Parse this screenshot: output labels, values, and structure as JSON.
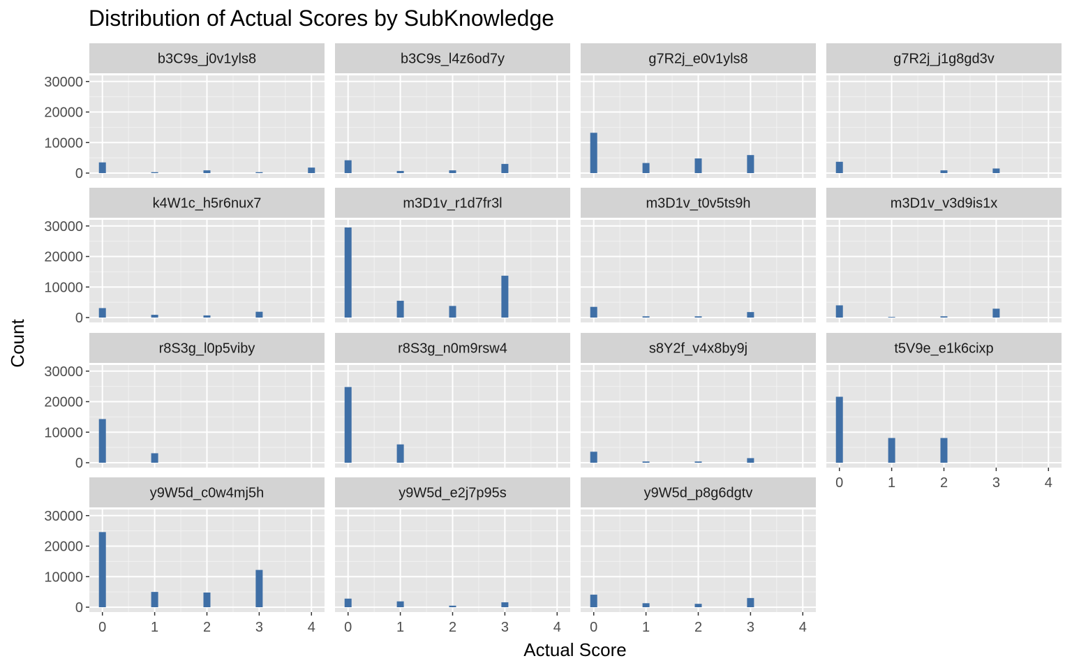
{
  "chart_data": {
    "type": "bar",
    "title": "Distribution of Actual Scores by SubKnowledge",
    "xlabel": "Actual Score",
    "ylabel": "Count",
    "x": [
      0,
      1,
      2,
      3,
      4
    ],
    "x_ticks": [
      "0",
      "1",
      "2",
      "3",
      "4"
    ],
    "y_ticks": [
      "0",
      "10000",
      "20000",
      "30000"
    ],
    "xlim": [
      -0.25,
      4.25
    ],
    "ylim": [
      0,
      32000
    ],
    "grid": true,
    "legend": "none",
    "bar_color": "#3f6fa6",
    "panel_background": "#e5e5e5",
    "strip_background": "#d3d3d3",
    "panels": [
      {
        "name": "b3C9s_j0v1yls8",
        "values": [
          3500,
          300,
          900,
          300,
          1800
        ]
      },
      {
        "name": "b3C9s_l4z6od7y",
        "values": [
          4200,
          700,
          900,
          3000,
          0
        ]
      },
      {
        "name": "g7R2j_e0v1yls8",
        "values": [
          13200,
          3300,
          4800,
          5900,
          0
        ]
      },
      {
        "name": "g7R2j_j1g8gd3v",
        "values": [
          3700,
          0,
          900,
          1500,
          0
        ]
      },
      {
        "name": "k4W1c_h5r6nux7",
        "values": [
          3100,
          900,
          700,
          1900,
          0
        ]
      },
      {
        "name": "m3D1v_r1d7fr3l",
        "values": [
          29500,
          5500,
          3800,
          13700,
          0
        ]
      },
      {
        "name": "m3D1v_t0v5ts9h",
        "values": [
          3500,
          400,
          400,
          1800,
          0
        ]
      },
      {
        "name": "m3D1v_v3d9is1x",
        "values": [
          4000,
          200,
          400,
          2900,
          0
        ]
      },
      {
        "name": "r8S3g_l0p5viby",
        "values": [
          14300,
          3100,
          0,
          0,
          0
        ]
      },
      {
        "name": "r8S3g_n0m9rsw4",
        "values": [
          24800,
          6000,
          0,
          0,
          0
        ]
      },
      {
        "name": "s8Y2f_v4x8by9j",
        "values": [
          3600,
          400,
          400,
          1500,
          0
        ]
      },
      {
        "name": "t5V9e_e1k6cixp",
        "values": [
          21600,
          8100,
          8100,
          0,
          0
        ]
      },
      {
        "name": "y9W5d_c0w4mj5h",
        "values": [
          24600,
          5000,
          4800,
          12200,
          0
        ]
      },
      {
        "name": "y9W5d_e2j7p95s",
        "values": [
          2800,
          1900,
          500,
          1600,
          0
        ]
      },
      {
        "name": "y9W5d_p8g6dgtv",
        "values": [
          4100,
          1300,
          1100,
          3000,
          0
        ]
      }
    ]
  }
}
